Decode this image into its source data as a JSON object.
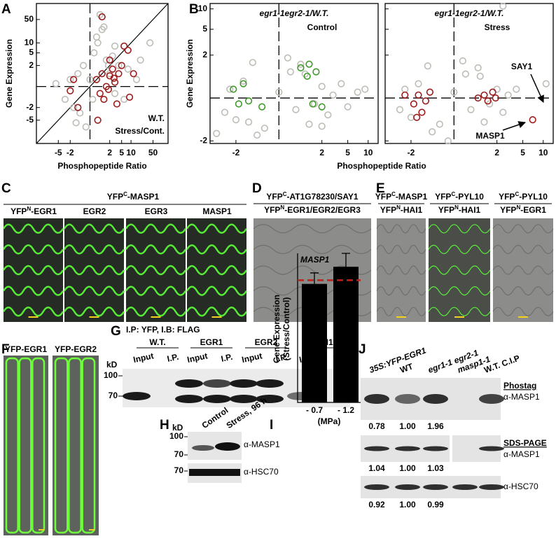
{
  "chart_data": [
    {
      "type": "scatter",
      "panel": "A",
      "xlabel": "Phosphopeptide Ratio",
      "ylabel": "Gene Expression",
      "annotations": [
        "W.T.",
        "Stress/Cont."
      ],
      "xscale": "asinh",
      "yscale": "asinh",
      "xlim": [
        -25,
        150
      ],
      "ylim": [
        -25,
        150
      ],
      "xticks": [
        -5,
        -2,
        2,
        5,
        10,
        50
      ],
      "yticks": [
        -5,
        -2,
        2,
        5,
        10,
        50
      ],
      "ytick_labels": true,
      "diagonal": true,
      "series": [
        {
          "color": "#bdbdb5",
          "x": [
            -3,
            -2,
            -1.5,
            -1,
            -0.5,
            0,
            0.3,
            0.6,
            1,
            1.5,
            2,
            3,
            -0.8,
            0.2,
            0.5,
            1.2,
            2.5,
            4,
            8,
            15,
            -1.2,
            0.8,
            1.8,
            3,
            6,
            -6,
            20,
            40,
            -0.3,
            1
          ],
          "y": [
            -1,
            0.5,
            -2,
            1,
            2,
            0.5,
            5,
            10,
            60,
            3,
            1,
            -0.5,
            -3,
            -1,
            15,
            30,
            4,
            2,
            1.5,
            0.5,
            -6,
            70,
            2,
            8,
            -1,
            0.2,
            3,
            10,
            -8,
            25
          ]
        },
        {
          "color": "#9b1c1c",
          "x": [
            0.5,
            1,
            1.5,
            2,
            2.5,
            3,
            4,
            5,
            1.2,
            0.8,
            2,
            3.5,
            -1.5,
            -2,
            -1,
            6,
            8,
            1,
            12,
            0.6,
            9,
            1.8,
            2.8
          ],
          "y": [
            0.5,
            1,
            0,
            0.8,
            1.5,
            0.3,
            1,
            2,
            -1,
            -0.5,
            3,
            -1.5,
            0.5,
            -0.3,
            -2,
            8,
            6,
            60,
            1,
            -5,
            -0.8,
            -0.2,
            0.6
          ]
        }
      ]
    },
    {
      "type": "scatter",
      "title": "egr1-1egr2-1/W.T.",
      "subtitle": "Control",
      "xscale": "asinh",
      "yscale": "asinh",
      "xlim": [
        -5,
        14
      ],
      "ylim": [
        -2.2,
        12
      ],
      "xticks": [
        -2,
        2,
        5,
        10
      ],
      "yticks": [
        -2,
        2,
        5,
        10
      ],
      "ytick_labels": true,
      "diagonal": false,
      "series": [
        {
          "color": "#bdbdb5",
          "x": [
            -3,
            -2.5,
            -2,
            -1.5,
            -1,
            -0.5,
            0,
            0.3,
            0.6,
            1,
            1.5,
            2,
            2.5,
            3,
            4,
            5,
            7,
            -0.8,
            0.4,
            1.2,
            -4,
            9,
            -1.2,
            0.8,
            2
          ],
          "y": [
            -0.5,
            0.3,
            -0.8,
            0.6,
            1.5,
            -1.2,
            0.2,
            1.8,
            -0.4,
            0.9,
            -0.2,
            0.4,
            -0.6,
            0.1,
            0.5,
            -0.3,
            0.2,
            -1.6,
            1,
            -1,
            -1.5,
            0.3,
            -0.9,
            1.4,
            -1.1
          ]
        },
        {
          "color": "#3f9a2a",
          "x": [
            -2.2,
            -1.8,
            -1.5,
            -1.2,
            -0.6,
            0.8,
            1.1,
            1.4,
            1.6,
            2,
            1.2
          ],
          "y": [
            0.3,
            -0.2,
            0.5,
            -0.1,
            -0.3,
            1.2,
            0.8,
            -0.2,
            1,
            -0.3,
            1.4
          ]
        }
      ]
    },
    {
      "type": "scatter",
      "title": "egr1-1egr2-1/W.T.",
      "subtitle": "Stress",
      "annotations": [
        "SAY1",
        "MASP1"
      ],
      "xscale": "asinh",
      "yscale": "asinh",
      "xlim": [
        -5,
        14
      ],
      "ylim": [
        -2.2,
        12
      ],
      "xticks": [
        -2,
        2,
        5,
        10
      ],
      "yticks": [
        -2,
        2,
        5,
        10
      ],
      "ytick_labels": false,
      "diagonal": false,
      "series": [
        {
          "color": "#bdbdb5",
          "x": [
            -3,
            -2.5,
            -2,
            -1.5,
            -1,
            -0.5,
            0,
            0.3,
            0.6,
            1,
            1.5,
            2,
            2.5,
            3,
            4,
            -0.8,
            0.4,
            1.2,
            11,
            2.5,
            -0.2,
            0.9
          ],
          "y": [
            -0.4,
            0.3,
            -0.7,
            0.5,
            1.3,
            -1,
            0.2,
            1.6,
            -0.4,
            0.8,
            -0.2,
            0.3,
            -0.5,
            0.1,
            0.3,
            -1.4,
            0.9,
            -0.9,
            0.5,
            11,
            -2,
            1.2
          ]
        },
        {
          "color": "#9b1c1c",
          "x": [
            -2.5,
            -1.8,
            -1.5,
            -1.3,
            -1.1,
            -0.9,
            0.9,
            1.2,
            1.4,
            1.7,
            1.9,
            -1.6,
            7
          ],
          "y": [
            0.1,
            -0.2,
            0.1,
            -0.5,
            -0.1,
            0.2,
            0,
            0.1,
            -0.1,
            0.2,
            0,
            -0.7,
            -0.8
          ]
        }
      ]
    },
    {
      "type": "bar",
      "title": "MASP1",
      "ylabel": [
        "Gene Expression",
        "(Stress/Control)"
      ],
      "xlabel": "(MPa)",
      "categories": [
        "- 0.7",
        "- 1.2"
      ],
      "values": [
        0.97,
        1.11
      ],
      "errors": [
        0.09,
        0.11
      ],
      "ylim": [
        0,
        1.22
      ],
      "reference_line": 1,
      "color": "#000000",
      "reference_color": "#c0201a"
    }
  ],
  "figure": {
    "A": {
      "letter": "A"
    },
    "B": {
      "letter": "B",
      "xlabel": "Phosphopeptide Ratio",
      "ylabel": "Gene Expression"
    },
    "C": {
      "letter": "C",
      "header": [
        "YFP",
        "C",
        "-MASP1"
      ],
      "images": [
        [
          "YFP",
          "N",
          "-EGR1"
        ],
        "EGR2",
        "EGR3",
        "MASP1"
      ]
    },
    "D": {
      "letter": "D",
      "line1": [
        "YFP",
        "C",
        "-AT1G78230/SAY1"
      ],
      "line2": [
        "YFP",
        "N",
        "-EGR1/EGR2/EGR3"
      ]
    },
    "E": {
      "letter": "E",
      "images": [
        {
          "top": [
            "YFP",
            "C",
            "-MASP1"
          ],
          "bottom": [
            "YFP",
            "N",
            "-HAI1"
          ]
        },
        {
          "top": [
            "YFP",
            "C",
            "-PYL10"
          ],
          "bottom": [
            "YFP",
            "N",
            "-HAI1"
          ]
        },
        {
          "top": [
            "YFP",
            "C",
            "-PYL10"
          ],
          "bottom": [
            "YFP",
            "N",
            "-EGR1"
          ]
        }
      ]
    },
    "F": {
      "letter": "F",
      "images": [
        "YFP-EGR1",
        "YFP-EGR2"
      ]
    },
    "G": {
      "letter": "G",
      "title": "I.P: YFP, I.B: FLAG",
      "groups": [
        "W.T.",
        "EGR1",
        "EGR2",
        "HAI1"
      ],
      "lanes": [
        "Input",
        "I.P."
      ],
      "unit": "kD",
      "markers": [
        "100",
        "70"
      ]
    },
    "H": {
      "letter": "H",
      "unit": "kD",
      "lanes": [
        "Control",
        "Stress, 96 h"
      ],
      "markers": [
        "100",
        "70",
        "70"
      ],
      "antibodies": [
        "α-MASP1",
        "α-HSC70"
      ]
    },
    "I": {
      "letter": "I"
    },
    "J": {
      "letter": "J",
      "lanes": [
        "35S:YFP-EGR1",
        "WT",
        "egr1-1 egr2-1",
        "masp1-1",
        "W.T. C.I.P"
      ],
      "blots": [
        {
          "method": "Phostag",
          "antibody": "α-MASP1",
          "quant": [
            "0.78",
            "1.00",
            "1.96"
          ]
        },
        {
          "method": "SDS-PAGE",
          "antibody": "α-MASP1",
          "quant": [
            "1.04",
            "1.00",
            "1.03"
          ]
        },
        {
          "antibody": "α-HSC70",
          "quant": [
            "0.92",
            "1.00",
            "0.99"
          ]
        }
      ]
    }
  }
}
